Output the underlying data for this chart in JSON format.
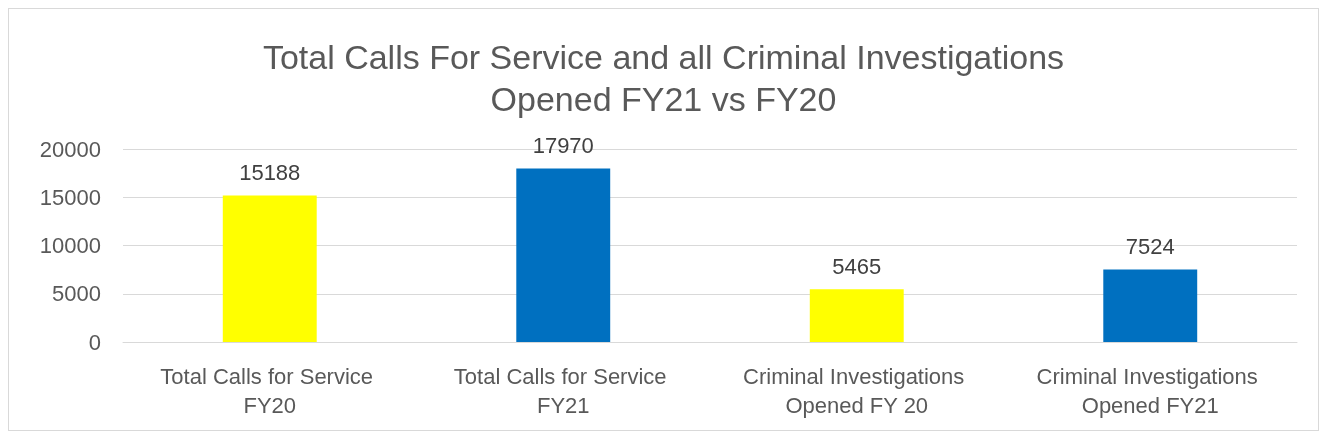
{
  "chart_data": {
    "type": "bar",
    "title": "Total Calls For Service and all Criminal Investigations\nOpened FY21 vs FY20",
    "categories": [
      "Total Calls for Service FY20",
      "Total Calls for Service FY21",
      "Criminal Investigations Opened FY 20",
      "Criminal Investigations Opened FY21"
    ],
    "values": [
      15188,
      17970,
      5465,
      7524
    ],
    "colors": [
      "#ffff00",
      "#0070c0",
      "#ffff00",
      "#0070c0"
    ],
    "ylim": [
      0,
      20000
    ],
    "yticks": [
      0,
      5000,
      10000,
      15000,
      20000
    ],
    "grid": "y",
    "data_labels": true
  }
}
